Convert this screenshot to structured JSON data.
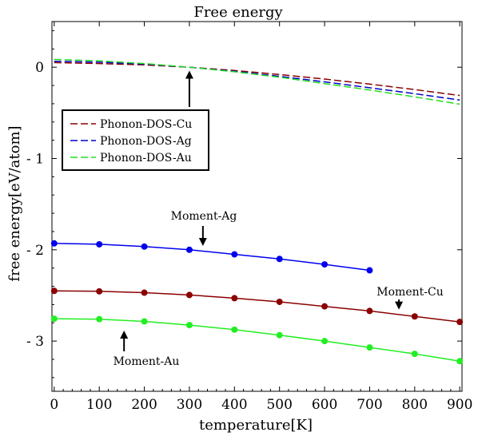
{
  "chart_data": {
    "type": "line",
    "title": "Free energy",
    "xlabel": "temperature[K]",
    "ylabel": "free energy[eV/atom]",
    "xlim": [
      -5,
      905
    ],
    "ylim": [
      -3.55,
      0.5
    ],
    "xticks": [
      0,
      100,
      200,
      300,
      400,
      500,
      600,
      700,
      800,
      900
    ],
    "yticks": [
      0,
      -1,
      -2,
      -3
    ],
    "ytick_labels": [
      "0",
      "- 1",
      "- 2",
      "- 3"
    ],
    "grid": false,
    "legend_position": "upper-left",
    "series": [
      {
        "name": "Phonon-DOS-Cu",
        "style": "dashed",
        "color": "#8b0000",
        "x": [
          0,
          100,
          200,
          300,
          400,
          500,
          600,
          700,
          800,
          900
        ],
        "y": [
          0.05,
          0.04,
          0.025,
          0.0,
          -0.035,
          -0.08,
          -0.13,
          -0.185,
          -0.245,
          -0.31
        ]
      },
      {
        "name": "Phonon-DOS-Ag",
        "style": "dashed",
        "color": "#0000cd",
        "x": [
          0,
          100,
          200,
          300,
          400,
          500,
          600,
          700,
          800,
          900
        ],
        "y": [
          0.065,
          0.055,
          0.035,
          0.0,
          -0.045,
          -0.1,
          -0.16,
          -0.225,
          -0.29,
          -0.36
        ]
      },
      {
        "name": "Phonon-DOS-Au",
        "style": "dashed",
        "color": "#22dd22",
        "x": [
          0,
          100,
          200,
          300,
          400,
          500,
          600,
          700,
          800,
          900
        ],
        "y": [
          0.085,
          0.07,
          0.04,
          0.0,
          -0.05,
          -0.11,
          -0.18,
          -0.25,
          -0.325,
          -0.405
        ]
      },
      {
        "name": "",
        "style": "solid-markers",
        "color": "#0000ee",
        "x": [
          0,
          100,
          200,
          300,
          400,
          500,
          600,
          700
        ],
        "y": [
          -1.93,
          -1.94,
          -1.965,
          -2.0,
          -2.05,
          -2.1,
          -2.16,
          -2.225
        ]
      },
      {
        "name": "",
        "style": "solid-markers",
        "color": "#8b0000",
        "x": [
          0,
          100,
          200,
          300,
          400,
          500,
          600,
          700,
          800,
          900
        ],
        "y": [
          -2.45,
          -2.455,
          -2.47,
          -2.495,
          -2.53,
          -2.57,
          -2.62,
          -2.67,
          -2.73,
          -2.79
        ]
      },
      {
        "name": "",
        "style": "solid-markers",
        "color": "#22ee22",
        "x": [
          0,
          100,
          200,
          300,
          400,
          500,
          600,
          700,
          800,
          900
        ],
        "y": [
          -2.755,
          -2.76,
          -2.785,
          -2.825,
          -2.875,
          -2.935,
          -3.0,
          -3.07,
          -3.14,
          -3.22
        ]
      }
    ],
    "annotations": [
      {
        "text": "Moment-Ag",
        "arrow_to": [
          330,
          -2.01
        ]
      },
      {
        "text": "Moment-Cu",
        "arrow_to": [
          765,
          -2.69
        ]
      },
      {
        "text": "Moment-Au",
        "arrow_to": [
          155,
          -2.85
        ]
      },
      {
        "text": "",
        "arrow_to": [
          300,
          -0.02
        ]
      }
    ]
  }
}
